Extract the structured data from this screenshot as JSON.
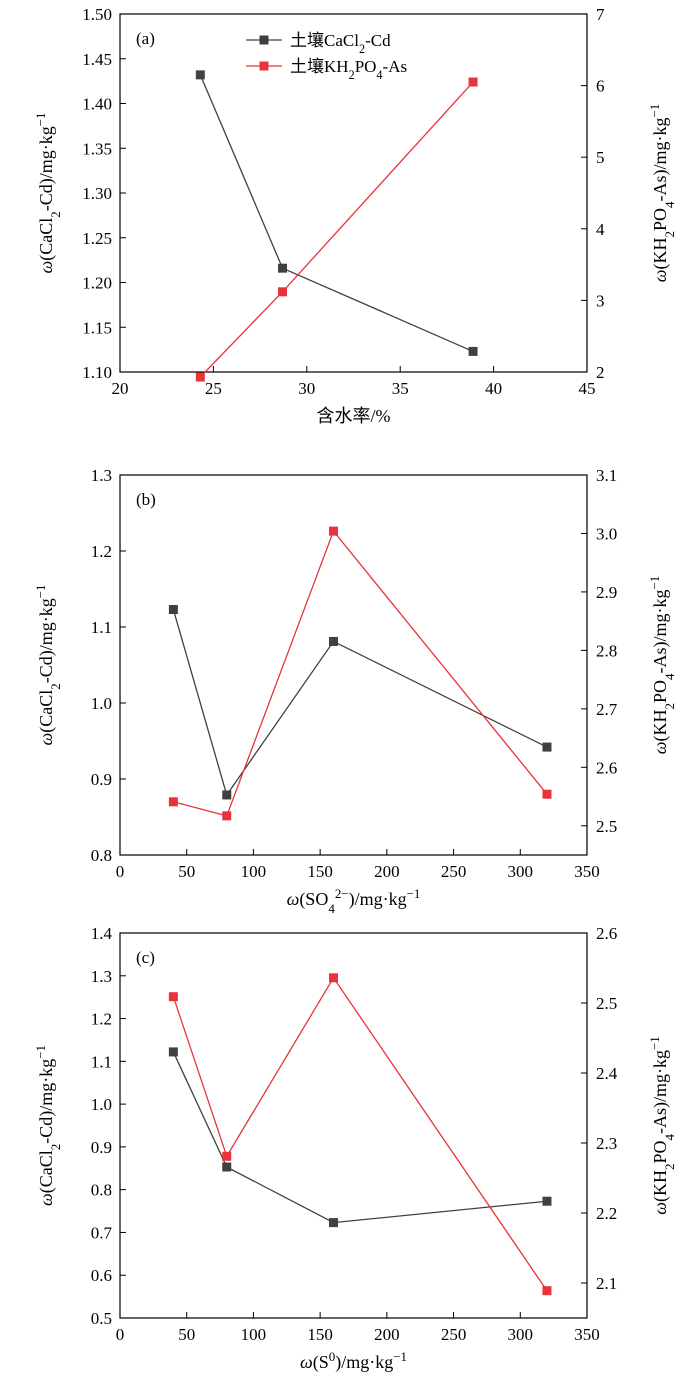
{
  "chart_data": [
    {
      "type": "line",
      "panel_label": "(a)",
      "xlabel": "含水率/%",
      "ylabel_left": "ω(CaCl₂-Cd)/mg·kg⁻¹",
      "ylabel_right": "ω(KH₂PO₄-As)/mg·kg⁻¹",
      "xlim": [
        20,
        45
      ],
      "xticks": [
        "20",
        "25",
        "30",
        "35",
        "40",
        "45"
      ],
      "ylim_left": [
        1.1,
        1.5
      ],
      "yticks_left": [
        "1.10",
        "1.15",
        "1.20",
        "1.25",
        "1.30",
        "1.35",
        "1.40",
        "1.45",
        "1.50"
      ],
      "ylim_right": [
        2,
        7
      ],
      "yticks_right": [
        "2",
        "3",
        "4",
        "5",
        "6",
        "7"
      ],
      "legend": "top-center",
      "series": [
        {
          "name": "土壤CaCl₂-Cd",
          "axis": "left",
          "color": "#404040",
          "marker": "square",
          "x": [
            24.3,
            28.7,
            38.9
          ],
          "y": [
            1.432,
            1.216,
            1.123
          ]
        },
        {
          "name": "土壤KH₂PO₄-As",
          "axis": "right",
          "color": "#e8333a",
          "marker": "square",
          "x": [
            24.3,
            28.7,
            38.9
          ],
          "y": [
            1.93,
            3.12,
            6.05
          ]
        }
      ]
    },
    {
      "type": "line",
      "panel_label": "(b)",
      "xlabel": "ω(SO₄²⁻)/mg·kg⁻¹",
      "ylabel_left": "ω(CaCl₂-Cd)/mg·kg⁻¹",
      "ylabel_right": "ω(KH₂PO₄-As)/mg·kg⁻¹",
      "xlim": [
        0,
        350
      ],
      "xticks": [
        "0",
        "50",
        "100",
        "150",
        "200",
        "250",
        "300",
        "350"
      ],
      "ylim_left": [
        0.8,
        1.3
      ],
      "yticks_left": [
        "0.8",
        "0.9",
        "1.0",
        "1.1",
        "1.2",
        "1.3"
      ],
      "ylim_right": [
        2.45,
        3.1
      ],
      "yticks_right": [
        "2.5",
        "2.6",
        "2.7",
        "2.8",
        "2.9",
        "3.0",
        "3.1"
      ],
      "series": [
        {
          "name": "土壤CaCl₂-Cd",
          "axis": "left",
          "color": "#404040",
          "marker": "square",
          "x": [
            40,
            80,
            160,
            320
          ],
          "y": [
            1.123,
            0.879,
            1.081,
            0.942
          ]
        },
        {
          "name": "土壤KH₂PO₄-As",
          "axis": "right",
          "color": "#e8333a",
          "marker": "square",
          "x": [
            40,
            80,
            160,
            320
          ],
          "y": [
            2.541,
            2.517,
            3.004,
            2.554
          ]
        }
      ]
    },
    {
      "type": "line",
      "panel_label": "(c)",
      "xlabel": "ω(S⁰)/mg·kg⁻¹",
      "ylabel_left": "ω(CaCl₂-Cd)/mg·kg⁻¹",
      "ylabel_right": "ω(KH₂PO₄-As)/mg·kg⁻¹",
      "xlim": [
        0,
        350
      ],
      "xticks": [
        "0",
        "50",
        "100",
        "150",
        "200",
        "250",
        "300",
        "350"
      ],
      "ylim_left": [
        0.5,
        1.4
      ],
      "yticks_left": [
        "0.5",
        "0.6",
        "0.7",
        "0.8",
        "0.9",
        "1.0",
        "1.1",
        "1.2",
        "1.3",
        "1.4"
      ],
      "ylim_right": [
        2.05,
        2.6
      ],
      "yticks_right": [
        "2.1",
        "2.2",
        "2.3",
        "2.4",
        "2.5",
        "2.6"
      ],
      "series": [
        {
          "name": "土壤CaCl₂-Cd",
          "axis": "left",
          "color": "#404040",
          "marker": "square",
          "x": [
            40,
            80,
            160,
            320
          ],
          "y": [
            1.122,
            0.853,
            0.723,
            0.773
          ]
        },
        {
          "name": "土壤KH₂PO₄-As",
          "axis": "right",
          "color": "#e8333a",
          "marker": "square",
          "x": [
            40,
            80,
            160,
            320
          ],
          "y": [
            2.509,
            2.281,
            2.536,
            2.089
          ]
        }
      ]
    }
  ]
}
